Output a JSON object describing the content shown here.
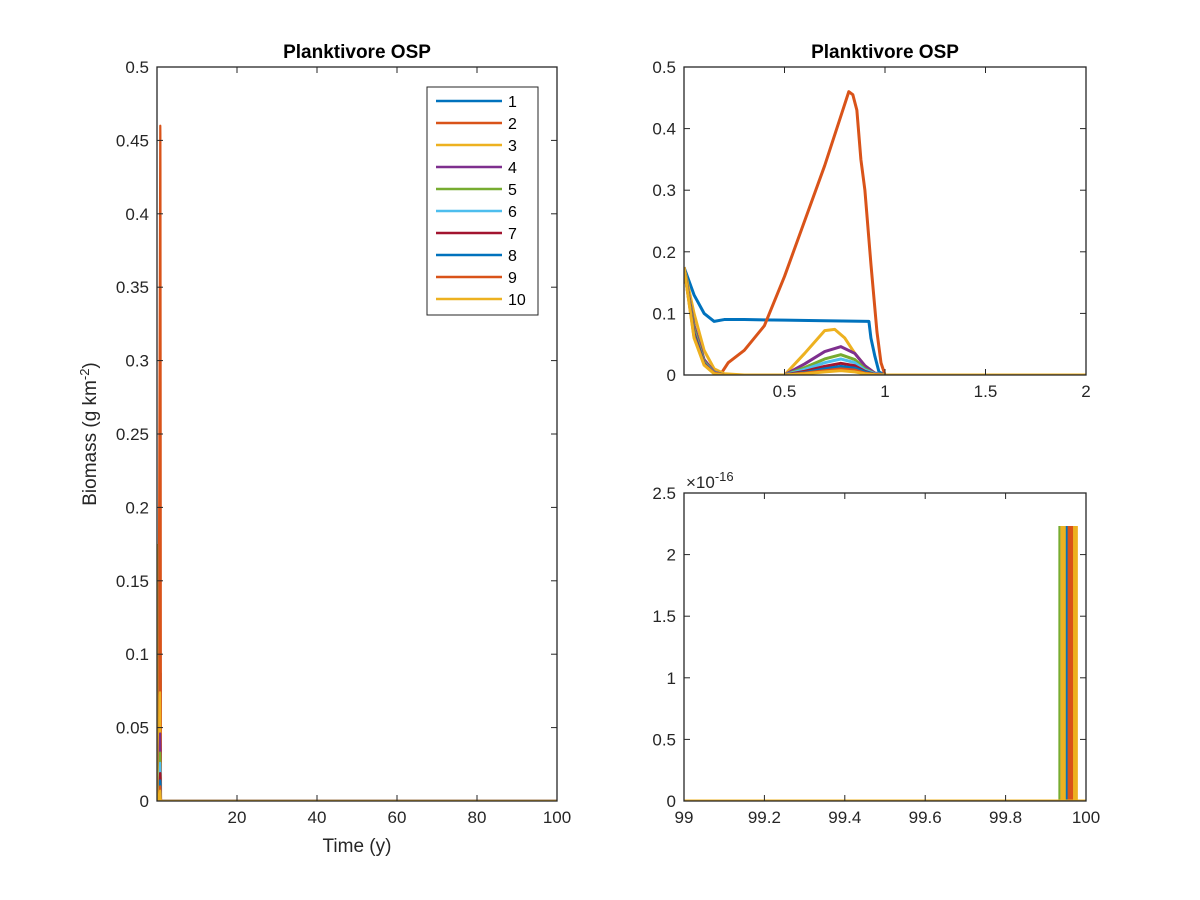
{
  "colors": {
    "s1": "#0072BD",
    "s2": "#D95319",
    "s3": "#EDB120",
    "s4": "#7E2F8E",
    "s5": "#77AC30",
    "s6": "#4DBEEE",
    "s7": "#A2142F",
    "s8": "#0072BD",
    "s9": "#D95319",
    "s10": "#EDB120"
  },
  "chart_data": [
    {
      "id": "left",
      "type": "line",
      "title": "Planktivore OSP",
      "xlabel": "Time (y)",
      "ylabel_main": "Biomass (g km",
      "ylabel_sup": "-2",
      "ylabel_end": ")",
      "xlim": [
        0,
        100
      ],
      "ylim": [
        0,
        0.5
      ],
      "xticks": [
        20,
        40,
        60,
        80,
        100
      ],
      "yticks": [
        0,
        0.05,
        0.1,
        0.15,
        0.2,
        0.25,
        0.3,
        0.35,
        0.4,
        0.45,
        0.5
      ],
      "xtick_labels": [
        "20",
        "40",
        "60",
        "80",
        "100"
      ],
      "ytick_labels": [
        "0",
        "0.05",
        "0.1",
        "0.15",
        "0.2",
        "0.25",
        "0.3",
        "0.35",
        "0.4",
        "0.45",
        "0.5"
      ],
      "legend": {
        "position": "top-right",
        "entries": [
          "1",
          "2",
          "3",
          "4",
          "5",
          "6",
          "7",
          "8",
          "9",
          "10"
        ]
      }
    },
    {
      "id": "top-right",
      "type": "line",
      "title": "Planktivore OSP",
      "xlim": [
        0,
        2
      ],
      "ylim": [
        0,
        0.5
      ],
      "xticks": [
        0.5,
        1,
        1.5,
        2
      ],
      "yticks": [
        0,
        0.1,
        0.2,
        0.3,
        0.4,
        0.5
      ],
      "xtick_labels": [
        "0.5",
        "1",
        "1.5",
        "2"
      ],
      "ytick_labels": [
        "0",
        "0.1",
        "0.2",
        "0.3",
        "0.4",
        "0.5"
      ]
    },
    {
      "id": "bottom-right",
      "type": "line",
      "xlim": [
        99,
        100
      ],
      "ylim": [
        0,
        2.5e-16
      ],
      "exponent_base": "×10",
      "exponent_power": "-16",
      "xticks": [
        99,
        99.2,
        99.4,
        99.6,
        99.8,
        100
      ],
      "yticks": [
        0,
        0.5,
        1,
        1.5,
        2,
        2.5
      ],
      "xtick_labels": [
        "99",
        "99.2",
        "99.4",
        "99.6",
        "99.8",
        "100"
      ],
      "ytick_labels": [
        "0",
        "0.5",
        "1",
        "1.5",
        "2",
        "2.5"
      ]
    }
  ],
  "series": [
    {
      "name": "1",
      "color_key": "s1",
      "x": [
        0,
        0.05,
        0.1,
        0.15,
        0.2,
        0.3,
        0.5,
        0.7,
        0.92,
        0.93,
        0.95,
        0.97,
        1.0,
        2.0
      ],
      "y": [
        0.175,
        0.13,
        0.1,
        0.087,
        0.09,
        0.09,
        0.089,
        0.088,
        0.087,
        0.06,
        0.03,
        0.005,
        0,
        0
      ]
    },
    {
      "name": "2",
      "color_key": "s2",
      "x": [
        0,
        0.05,
        0.1,
        0.15,
        0.18,
        0.22,
        0.3,
        0.4,
        0.5,
        0.6,
        0.7,
        0.78,
        0.82,
        0.84,
        0.86,
        0.88,
        0.9,
        0.93,
        0.96,
        0.98,
        1.0,
        2.0
      ],
      "y": [
        0.175,
        0.08,
        0.02,
        0.002,
        0,
        0.02,
        0.04,
        0.08,
        0.16,
        0.25,
        0.34,
        0.42,
        0.46,
        0.455,
        0.43,
        0.35,
        0.3,
        0.18,
        0.07,
        0.02,
        0,
        0
      ]
    },
    {
      "name": "3",
      "color_key": "s3",
      "x": [
        0,
        0.05,
        0.1,
        0.15,
        0.2,
        0.3,
        0.5,
        0.6,
        0.7,
        0.75,
        0.8,
        0.85,
        0.9,
        0.95,
        1.0,
        2.0
      ],
      "y": [
        0.175,
        0.1,
        0.04,
        0.01,
        0.002,
        0,
        0,
        0.035,
        0.072,
        0.074,
        0.06,
        0.035,
        0.015,
        0.003,
        0,
        0
      ]
    },
    {
      "name": "4",
      "color_key": "s4",
      "x": [
        0,
        0.05,
        0.1,
        0.15,
        0.2,
        0.5,
        0.6,
        0.7,
        0.78,
        0.85,
        0.9,
        0.95,
        1.0,
        2.0
      ],
      "y": [
        0.175,
        0.08,
        0.025,
        0.005,
        0,
        0,
        0.018,
        0.038,
        0.046,
        0.035,
        0.015,
        0.003,
        0,
        0
      ]
    },
    {
      "name": "5",
      "color_key": "s5",
      "x": [
        0,
        0.05,
        0.1,
        0.15,
        0.2,
        0.5,
        0.6,
        0.7,
        0.78,
        0.85,
        0.9,
        0.95,
        1.0,
        2.0
      ],
      "y": [
        0.175,
        0.075,
        0.022,
        0.004,
        0,
        0,
        0.012,
        0.026,
        0.033,
        0.025,
        0.01,
        0.002,
        0,
        0
      ]
    },
    {
      "name": "6",
      "color_key": "s6",
      "x": [
        0,
        0.05,
        0.1,
        0.15,
        0.2,
        0.5,
        0.6,
        0.7,
        0.78,
        0.85,
        0.9,
        0.95,
        1.0,
        2.0
      ],
      "y": [
        0.175,
        0.07,
        0.02,
        0.004,
        0,
        0,
        0.009,
        0.02,
        0.026,
        0.02,
        0.008,
        0.002,
        0,
        0
      ]
    },
    {
      "name": "7",
      "color_key": "s7",
      "x": [
        0,
        0.05,
        0.1,
        0.15,
        0.2,
        0.5,
        0.6,
        0.7,
        0.78,
        0.85,
        0.9,
        0.95,
        1.0,
        2.0
      ],
      "y": [
        0.175,
        0.068,
        0.019,
        0.003,
        0,
        0,
        0.006,
        0.014,
        0.019,
        0.015,
        0.006,
        0.001,
        0,
        0
      ]
    },
    {
      "name": "8",
      "color_key": "s8",
      "x": [
        0,
        0.05,
        0.1,
        0.15,
        0.2,
        0.5,
        0.6,
        0.7,
        0.78,
        0.85,
        0.9,
        0.95,
        1.0,
        2.0
      ],
      "y": [
        0.175,
        0.065,
        0.018,
        0.003,
        0,
        0,
        0.004,
        0.01,
        0.014,
        0.011,
        0.005,
        0.001,
        0,
        0
      ]
    },
    {
      "name": "9",
      "color_key": "s9",
      "x": [
        0,
        0.05,
        0.1,
        0.15,
        0.2,
        0.5,
        0.6,
        0.7,
        0.78,
        0.85,
        0.9,
        0.95,
        1.0,
        2.0
      ],
      "y": [
        0.175,
        0.062,
        0.017,
        0.003,
        0,
        0,
        0.003,
        0.007,
        0.01,
        0.008,
        0.003,
        0.001,
        0,
        0
      ]
    },
    {
      "name": "10",
      "color_key": "s10",
      "x": [
        0,
        0.05,
        0.1,
        0.15,
        0.2,
        0.5,
        0.6,
        0.7,
        0.78,
        0.85,
        0.9,
        0.95,
        1.0,
        2.0
      ],
      "y": [
        0.175,
        0.06,
        0.016,
        0.002,
        0,
        0,
        0.002,
        0.005,
        0.007,
        0.005,
        0.002,
        0.0005,
        0,
        0
      ]
    }
  ],
  "tail_spikes": [
    {
      "name": "1",
      "color_key": "s1",
      "x": 99.96
    },
    {
      "name": "2",
      "color_key": "s2",
      "x": 99.965
    },
    {
      "name": "3",
      "color_key": "s3",
      "x": 99.97
    },
    {
      "name": "4",
      "color_key": "s4",
      "x": 99.955
    },
    {
      "name": "5",
      "color_key": "s5",
      "x": 99.935
    },
    {
      "name": "6",
      "color_key": "s6",
      "x": 99.94
    },
    {
      "name": "7",
      "color_key": "s7",
      "x": 99.945
    },
    {
      "name": "8",
      "color_key": "s8",
      "x": 99.95
    },
    {
      "name": "9",
      "color_key": "s9",
      "x": 99.958
    },
    {
      "name": "10",
      "color_key": "s10",
      "x": 99.94
    }
  ],
  "tail_spike_height": 2.22e-16
}
